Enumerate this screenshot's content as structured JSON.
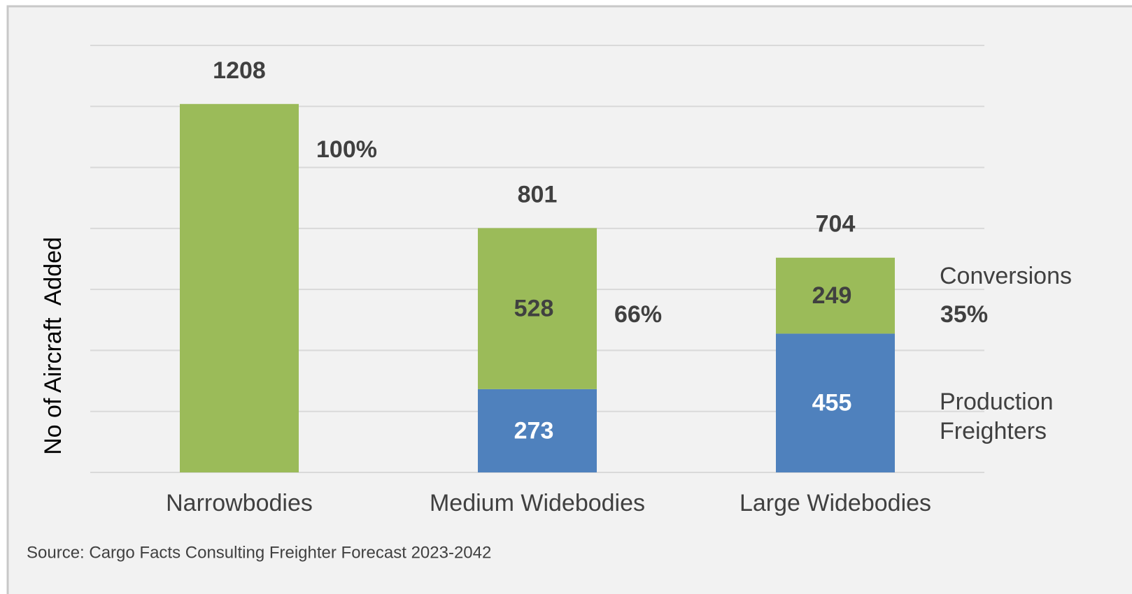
{
  "chart_data": {
    "type": "stacked_bar",
    "y_axis_label": "No of Aircraft  Added",
    "categories": [
      "Narrowbodies",
      "Medium Widebodies",
      "Large Widebodies"
    ],
    "series": [
      {
        "name": "Production Freighters",
        "color": "#4f81bd",
        "values": [
          0,
          273,
          455
        ]
      },
      {
        "name": "Conversions",
        "color": "#9bbb59",
        "values": [
          1208,
          528,
          249
        ]
      }
    ],
    "totals": [
      1208,
      801,
      704
    ],
    "conversion_share": {
      "values": [
        100,
        66,
        35
      ],
      "value_labels": [
        "100%",
        "66%",
        "35%"
      ]
    },
    "ylim": [
      0,
      1400
    ],
    "yticks": [
      0,
      200,
      400,
      600,
      800,
      1000,
      1200,
      1400
    ],
    "grid": true,
    "source": "Source: Cargo Facts Consulting Freighter Forecast 2023-2042"
  }
}
